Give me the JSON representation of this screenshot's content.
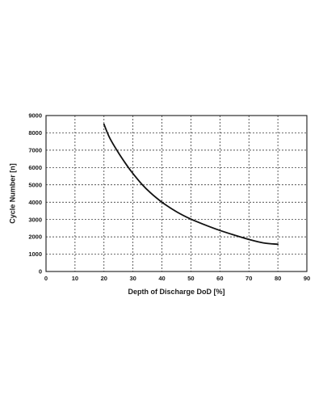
{
  "chart_data": {
    "type": "line",
    "xlabel": "Depth of Discharge DoD [%]",
    "ylabel": "Cycle Number [n]",
    "xlim": [
      0,
      90
    ],
    "ylim": [
      0,
      9000
    ],
    "xticks": [
      0,
      10,
      20,
      30,
      40,
      50,
      60,
      70,
      80,
      90
    ],
    "yticks": [
      0,
      1000,
      2000,
      3000,
      4000,
      5000,
      6000,
      7000,
      8000,
      9000
    ],
    "grid": true,
    "series": [
      {
        "color": "#111111",
        "x": [
          20,
          22,
          25,
          28,
          30,
          33,
          36,
          40,
          45,
          50,
          55,
          60,
          65,
          70,
          75,
          80
        ],
        "y": [
          8500,
          7700,
          6850,
          6100,
          5650,
          5050,
          4550,
          4000,
          3450,
          3020,
          2680,
          2370,
          2100,
          1850,
          1650,
          1570
        ]
      }
    ]
  }
}
